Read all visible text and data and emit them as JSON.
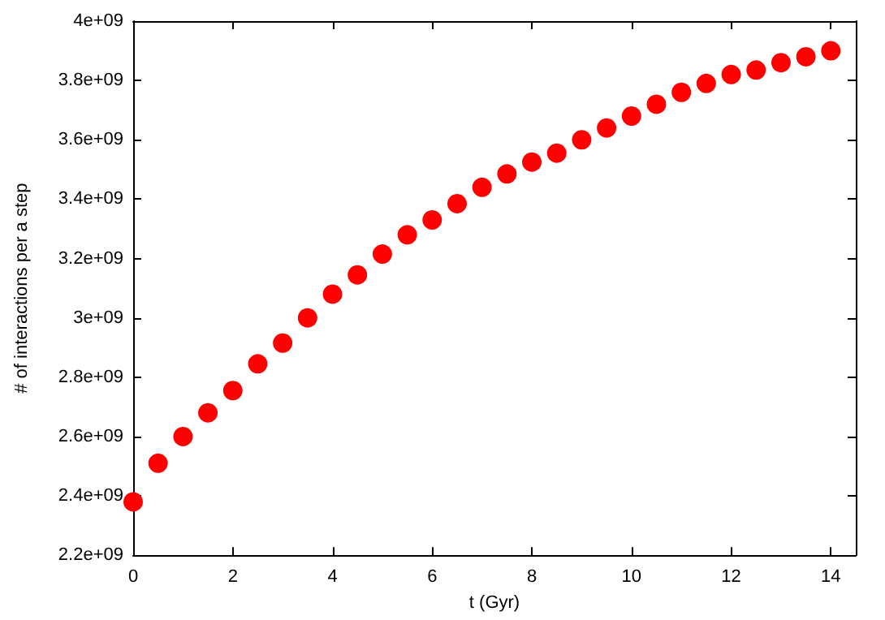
{
  "chart_data": {
    "type": "scatter",
    "xlabel": "t (Gyr)",
    "ylabel": "# of interactions per a step",
    "x": [
      0,
      0.5,
      1,
      1.5,
      2,
      2.5,
      3,
      3.5,
      4,
      4.5,
      5,
      5.5,
      6,
      6.5,
      7,
      7.5,
      8,
      8.5,
      9,
      9.5,
      10,
      10.5,
      11,
      11.5,
      12,
      12.5,
      13,
      13.5,
      14
    ],
    "series": [
      {
        "color": "#ff0000",
        "values": [
          2380000000,
          2510000000,
          2600000000,
          2680000000,
          2755000000,
          2845000000,
          2915000000,
          3000000000,
          3080000000,
          3145000000,
          3215000000,
          3280000000,
          3330000000,
          3385000000,
          3440000000,
          3485000000,
          3525000000,
          3555000000,
          3600000000,
          3640000000,
          3680000000,
          3720000000,
          3760000000,
          3790000000,
          3820000000,
          3835000000,
          3860000000,
          3880000000,
          3900000000
        ]
      }
    ],
    "xlim": [
      0,
      14.5
    ],
    "xticks": [
      0,
      2,
      4,
      6,
      8,
      10,
      12,
      14
    ],
    "ylim": [
      2200000000,
      4000000000
    ],
    "yticks": [
      {
        "value": 2200000000,
        "label": "2.2e+09"
      },
      {
        "value": 2400000000,
        "label": "2.4e+09"
      },
      {
        "value": 2600000000,
        "label": "2.6e+09"
      },
      {
        "value": 2800000000,
        "label": "2.8e+09"
      },
      {
        "value": 3000000000,
        "label": "3e+09"
      },
      {
        "value": 3200000000,
        "label": "3.2e+09"
      },
      {
        "value": 3400000000,
        "label": "3.4e+09"
      },
      {
        "value": 3600000000,
        "label": "3.6e+09"
      },
      {
        "value": 3800000000,
        "label": "3.8e+09"
      },
      {
        "value": 4000000000,
        "label": "4e+09"
      }
    ],
    "marker": "circle",
    "grid": false
  }
}
